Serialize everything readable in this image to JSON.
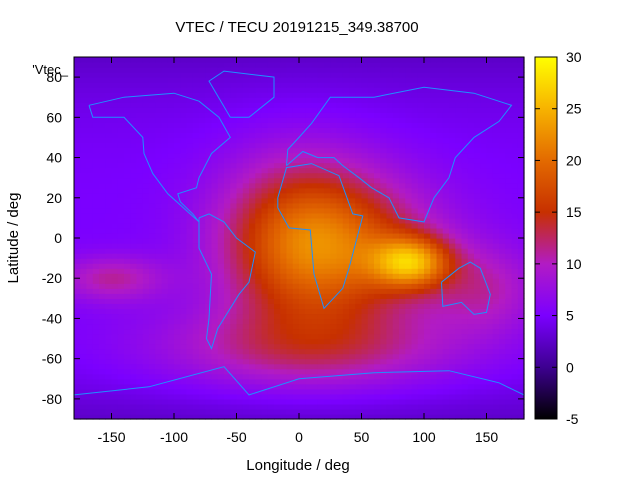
{
  "chart_data": {
    "type": "heatmap",
    "title": "VTEC / TECU 20191215_349.38700",
    "xlabel": "Longitude / deg",
    "ylabel": "Latitude / deg",
    "xlim": [
      -180,
      180
    ],
    "ylim": [
      -90,
      90
    ],
    "x_ticks": [
      -150,
      -100,
      -50,
      0,
      50,
      100,
      150
    ],
    "y_ticks": [
      -80,
      -60,
      -40,
      -20,
      0,
      20,
      40,
      60,
      80
    ],
    "legend_key": "'Vtec_",
    "colorbar": {
      "range": [
        -5,
        30
      ],
      "ticks": [
        -5,
        0,
        5,
        10,
        15,
        20,
        25,
        30
      ],
      "palette": [
        "#000000",
        "#3d0090",
        "#7b00ff",
        "#b21bc4",
        "#c73000",
        "#e36a00",
        "#f7b300",
        "#ffff00"
      ]
    },
    "value_field": {
      "background_tecu": 5,
      "anomalies": [
        {
          "lon": 90,
          "lat": -12,
          "amplitude": 15,
          "sigma_lon": 22,
          "sigma_lat": 9
        },
        {
          "lon": 35,
          "lat": -5,
          "amplitude": 10,
          "sigma_lon": 55,
          "sigma_lat": 25
        },
        {
          "lon": 0,
          "lat": 0,
          "amplitude": 9,
          "sigma_lon": 45,
          "sigma_lat": 30
        },
        {
          "lon": 10,
          "lat": -55,
          "amplitude": 7,
          "sigma_lon": 90,
          "sigma_lat": 15
        },
        {
          "lon": -150,
          "lat": -20,
          "amplitude": 6,
          "sigma_lon": 30,
          "sigma_lat": 8
        },
        {
          "lon": 150,
          "lat": -25,
          "amplitude": 5,
          "sigma_lon": 30,
          "sigma_lat": 15
        }
      ],
      "colors": {
        "coastline": "#1e90ff"
      }
    }
  }
}
